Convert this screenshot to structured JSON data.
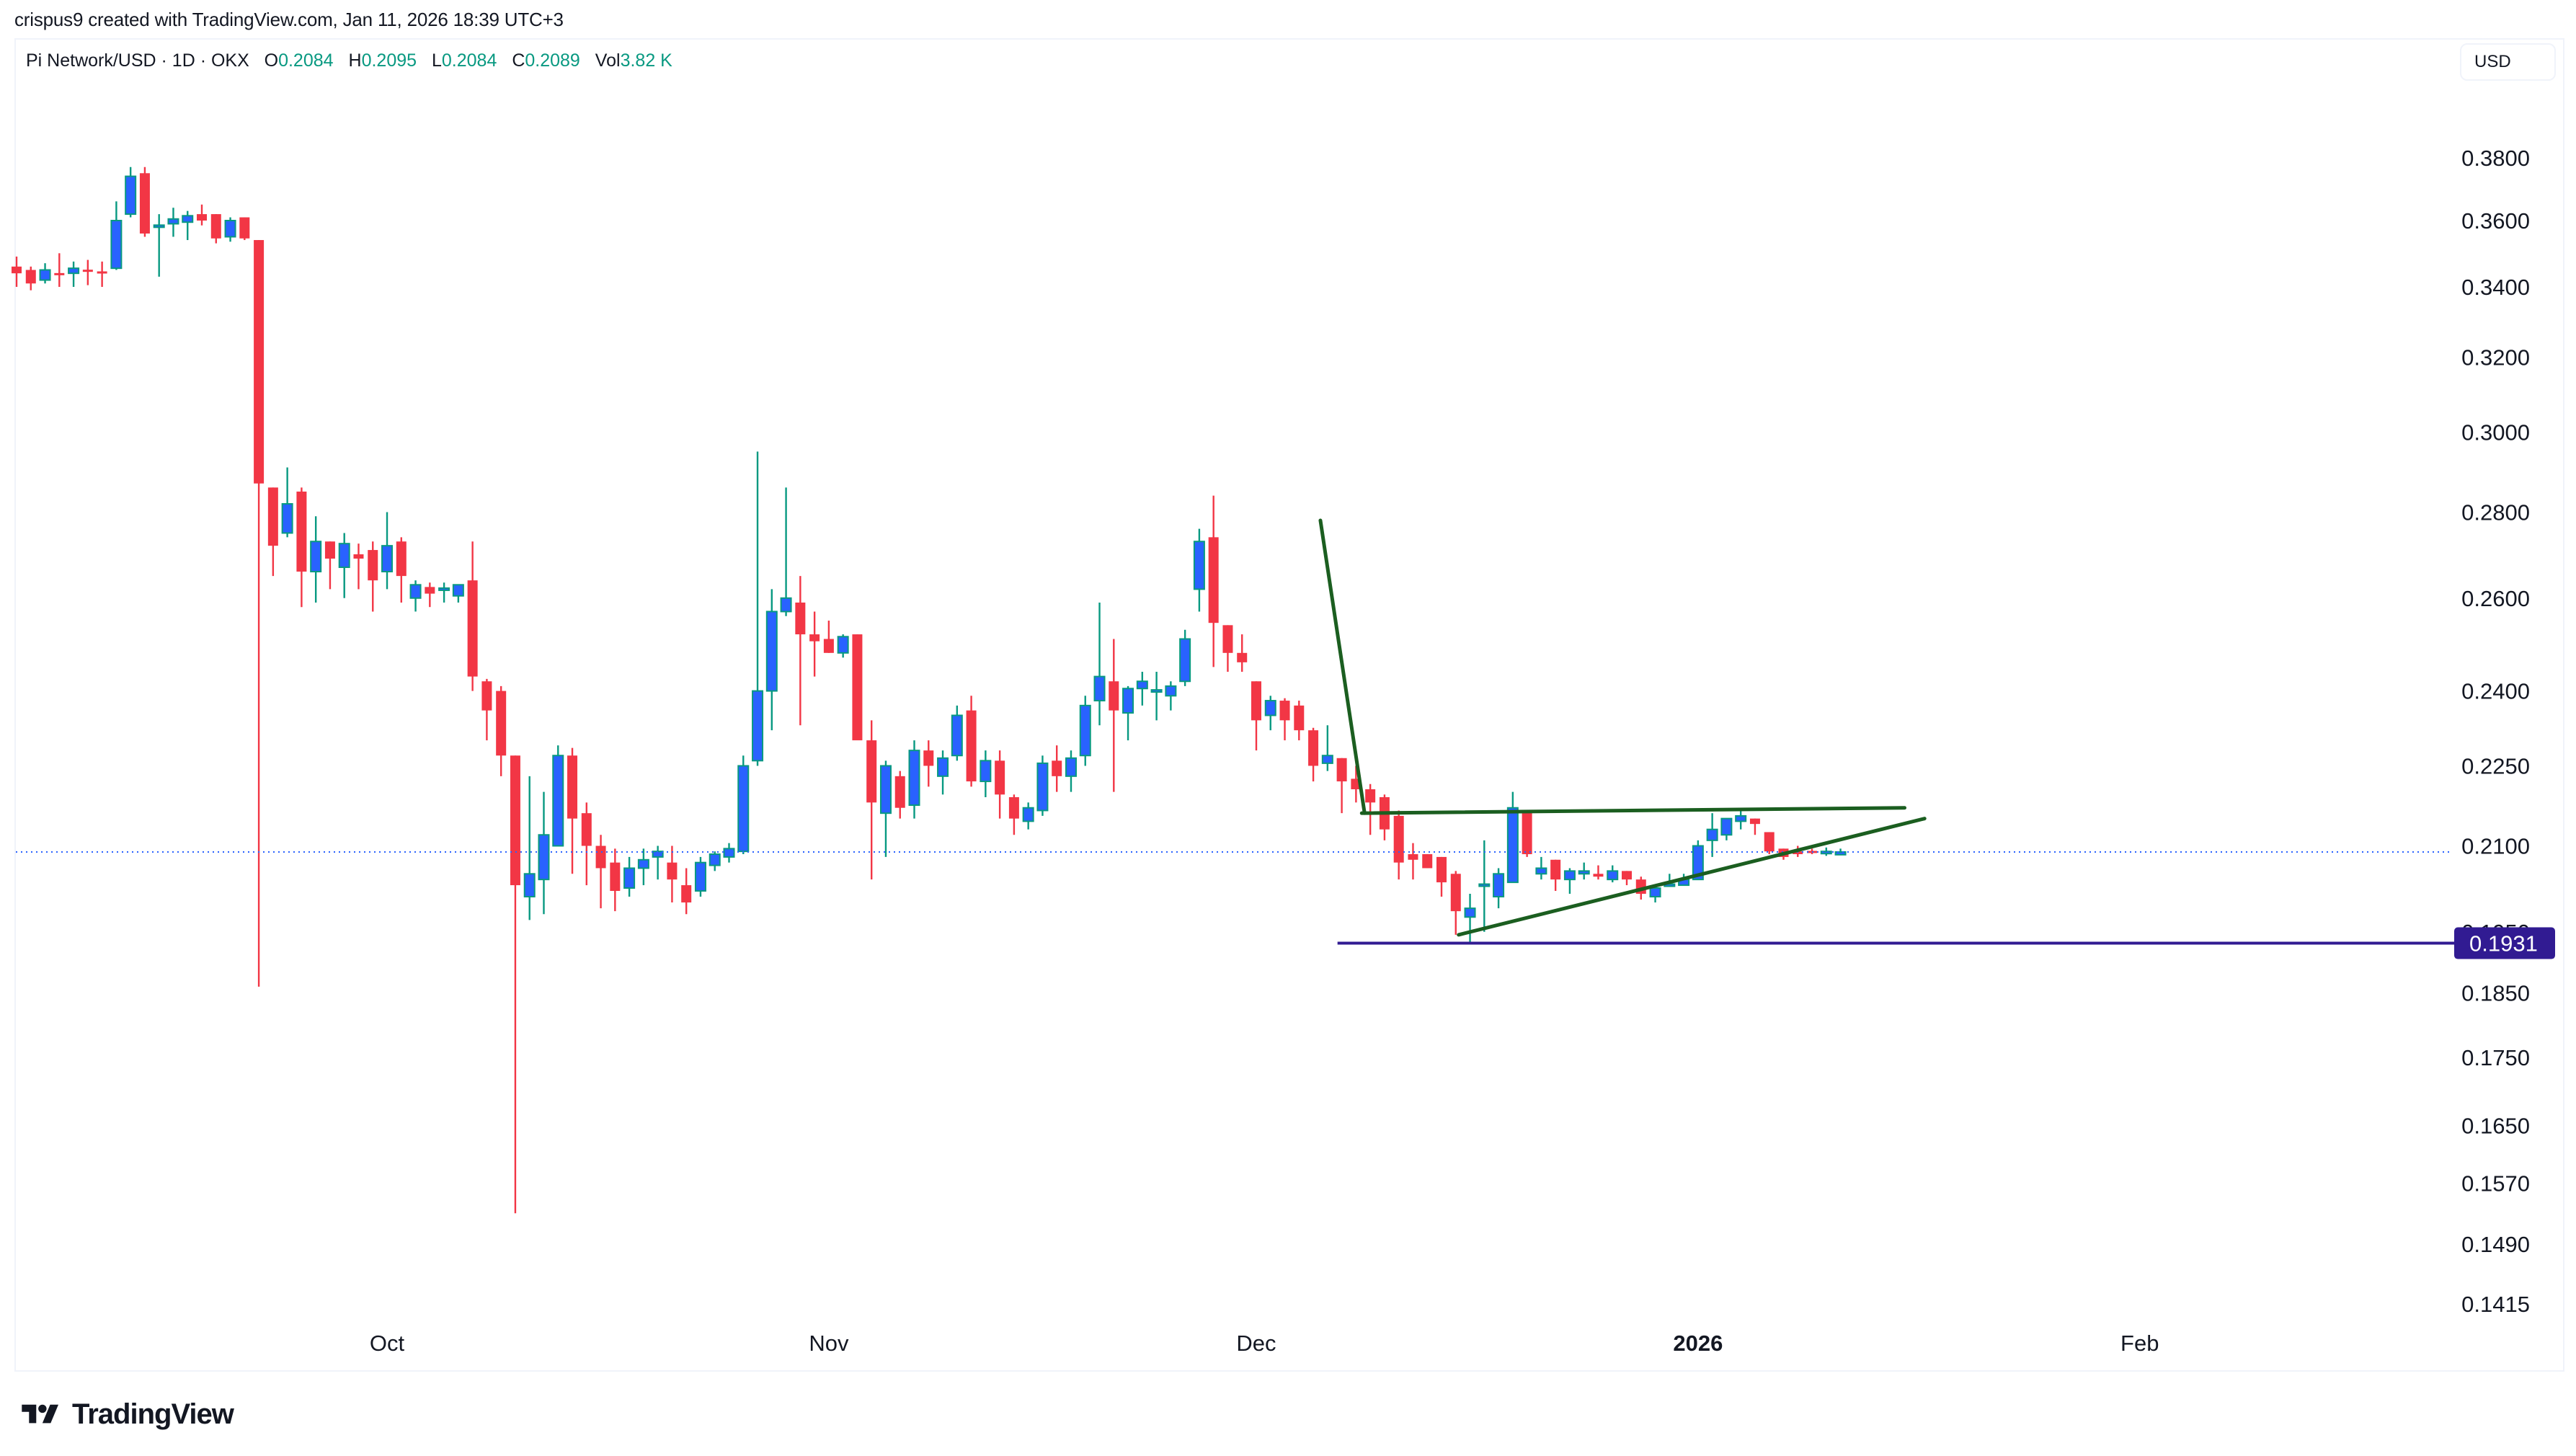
{
  "credit": "crispus9 created with TradingView.com, Jan 11, 2026 18:39 UTC+3",
  "legend": {
    "symbol": "Pi Network/USD · 1D · OKX",
    "open_label": "O",
    "open": "0.2084",
    "high_label": "H",
    "high": "0.2095",
    "low_label": "L",
    "low": "0.2084",
    "close_label": "C",
    "close": "0.2089",
    "vol_label": "Vol",
    "vol": "3.82 K"
  },
  "currency": "USD",
  "brand": "TradingView",
  "colors": {
    "up_body": "#2962ff",
    "up_border": "#089981",
    "down": "#f23645",
    "trendline": "#1b5e20",
    "support_line": "#311b92",
    "last_price_line": "#2962ff"
  },
  "chart_data": {
    "type": "candlestick",
    "title": "Pi Network/USD · 1D · OKX",
    "scale": "log",
    "xlabel": "",
    "ylabel": "USD",
    "ylim": [
      0.138,
      0.395
    ],
    "y_ticks": [
      "0.3800",
      "0.3600",
      "0.3400",
      "0.3200",
      "0.3000",
      "0.2800",
      "0.2600",
      "0.2400",
      "0.2250",
      "0.2100",
      "0.1950",
      "0.1850",
      "0.1750",
      "0.1650",
      "0.1570",
      "0.1490",
      "0.1415"
    ],
    "x_ticks": [
      {
        "label": "Oct",
        "bold": false,
        "day_index": 26
      },
      {
        "label": "Nov",
        "bold": false,
        "day_index": 57
      },
      {
        "label": "Dec",
        "bold": false,
        "day_index": 87
      },
      {
        "label": "2026",
        "bold": true,
        "day_index": 118
      },
      {
        "label": "Feb",
        "bold": false,
        "day_index": 149
      }
    ],
    "last_price": 0.2089,
    "horizontal_level": {
      "price": 0.1931,
      "label": "0.1931"
    },
    "annotations": [
      {
        "type": "trendline",
        "name": "flagpole",
        "from": {
          "day_index": 91.5,
          "price": 0.278
        },
        "to": {
          "day_index": 94.6,
          "price": 0.216
        }
      },
      {
        "type": "trendline",
        "name": "triangle-upper",
        "from": {
          "day_index": 94.4,
          "price": 0.216
        },
        "to": {
          "day_index": 132.5,
          "price": 0.217
        }
      },
      {
        "type": "trendline",
        "name": "triangle-lower",
        "from": {
          "day_index": 101.2,
          "price": 0.1945
        },
        "to": {
          "day_index": 133.9,
          "price": 0.215
        }
      },
      {
        "type": "hline",
        "name": "support",
        "from_day_index": 92.7,
        "price": 0.1931
      }
    ],
    "candles": [
      {
        "d": "Sep 5",
        "o": 0.346,
        "h": 0.349,
        "l": 0.34,
        "c": 0.344
      },
      {
        "d": "Sep 6",
        "o": 0.345,
        "h": 0.346,
        "l": 0.339,
        "c": 0.341
      },
      {
        "d": "Sep 7",
        "o": 0.342,
        "h": 0.347,
        "l": 0.341,
        "c": 0.345
      },
      {
        "d": "Sep 8",
        "o": 0.344,
        "h": 0.35,
        "l": 0.34,
        "c": 0.3435
      },
      {
        "d": "Sep 9",
        "o": 0.344,
        "h": 0.3475,
        "l": 0.34,
        "c": 0.3455
      },
      {
        "d": "Sep 10",
        "o": 0.345,
        "h": 0.348,
        "l": 0.3405,
        "c": 0.3445
      },
      {
        "d": "Sep 11",
        "o": 0.3445,
        "h": 0.3475,
        "l": 0.34,
        "c": 0.344
      },
      {
        "d": "Sep 12",
        "o": 0.3455,
        "h": 0.366,
        "l": 0.345,
        "c": 0.36
      },
      {
        "d": "Sep 13",
        "o": 0.362,
        "h": 0.377,
        "l": 0.361,
        "c": 0.374
      },
      {
        "d": "Sep 14",
        "o": 0.375,
        "h": 0.377,
        "l": 0.355,
        "c": 0.356
      },
      {
        "d": "Sep 15",
        "o": 0.358,
        "h": 0.362,
        "l": 0.343,
        "c": 0.3585
      },
      {
        "d": "Sep 16",
        "o": 0.359,
        "h": 0.364,
        "l": 0.355,
        "c": 0.3605
      },
      {
        "d": "Sep 17",
        "o": 0.3595,
        "h": 0.363,
        "l": 0.354,
        "c": 0.3615
      },
      {
        "d": "Sep 18",
        "o": 0.362,
        "h": 0.365,
        "l": 0.3585,
        "c": 0.36
      },
      {
        "d": "Sep 19",
        "o": 0.362,
        "h": 0.362,
        "l": 0.353,
        "c": 0.3545
      },
      {
        "d": "Sep 20",
        "o": 0.355,
        "h": 0.361,
        "l": 0.3535,
        "c": 0.36
      },
      {
        "d": "Sep 21",
        "o": 0.361,
        "h": 0.361,
        "l": 0.354,
        "c": 0.3545
      },
      {
        "d": "Sep 22",
        "o": 0.354,
        "h": 0.354,
        "l": 0.186,
        "c": 0.287
      },
      {
        "d": "Sep 23",
        "o": 0.286,
        "h": 0.286,
        "l": 0.265,
        "c": 0.272
      },
      {
        "d": "Sep 24",
        "o": 0.275,
        "h": 0.291,
        "l": 0.274,
        "c": 0.282
      },
      {
        "d": "Sep 25",
        "o": 0.285,
        "h": 0.286,
        "l": 0.258,
        "c": 0.266
      },
      {
        "d": "Sep 26",
        "o": 0.266,
        "h": 0.279,
        "l": 0.259,
        "c": 0.273
      },
      {
        "d": "Sep 27",
        "o": 0.273,
        "h": 0.273,
        "l": 0.262,
        "c": 0.269
      },
      {
        "d": "Sep 28",
        "o": 0.267,
        "h": 0.275,
        "l": 0.26,
        "c": 0.2725
      },
      {
        "d": "Sep 29",
        "o": 0.27,
        "h": 0.2725,
        "l": 0.262,
        "c": 0.269
      },
      {
        "d": "Sep 30",
        "o": 0.271,
        "h": 0.273,
        "l": 0.257,
        "c": 0.264
      },
      {
        "d": "Oct 1",
        "o": 0.266,
        "h": 0.28,
        "l": 0.262,
        "c": 0.272
      },
      {
        "d": "Oct 2",
        "o": 0.273,
        "h": 0.274,
        "l": 0.259,
        "c": 0.265
      },
      {
        "d": "Oct 3",
        "o": 0.26,
        "h": 0.264,
        "l": 0.257,
        "c": 0.263
      },
      {
        "d": "Oct 4",
        "o": 0.2625,
        "h": 0.2635,
        "l": 0.258,
        "c": 0.261
      },
      {
        "d": "Oct 5",
        "o": 0.262,
        "h": 0.2635,
        "l": 0.259,
        "c": 0.262
      },
      {
        "d": "Oct 6",
        "o": 0.2605,
        "h": 0.263,
        "l": 0.259,
        "c": 0.263
      },
      {
        "d": "Oct 7",
        "o": 0.264,
        "h": 0.273,
        "l": 0.24,
        "c": 0.243
      },
      {
        "d": "Oct 8",
        "o": 0.242,
        "h": 0.2425,
        "l": 0.23,
        "c": 0.236
      },
      {
        "d": "Oct 9",
        "o": 0.24,
        "h": 0.241,
        "l": 0.223,
        "c": 0.227
      },
      {
        "d": "Oct 10",
        "o": 0.227,
        "h": 0.227,
        "l": 0.153,
        "c": 0.203
      },
      {
        "d": "Oct 11",
        "o": 0.201,
        "h": 0.223,
        "l": 0.197,
        "c": 0.205
      },
      {
        "d": "Oct 12",
        "o": 0.204,
        "h": 0.22,
        "l": 0.198,
        "c": 0.212
      },
      {
        "d": "Oct 13",
        "o": 0.21,
        "h": 0.229,
        "l": 0.21,
        "c": 0.227
      },
      {
        "d": "Oct 14",
        "o": 0.227,
        "h": 0.2285,
        "l": 0.205,
        "c": 0.215
      },
      {
        "d": "Oct 15",
        "o": 0.216,
        "h": 0.218,
        "l": 0.203,
        "c": 0.21
      },
      {
        "d": "Oct 16",
        "o": 0.21,
        "h": 0.212,
        "l": 0.199,
        "c": 0.206
      },
      {
        "d": "Oct 17",
        "o": 0.207,
        "h": 0.2095,
        "l": 0.1985,
        "c": 0.202
      },
      {
        "d": "Oct 18",
        "o": 0.2025,
        "h": 0.208,
        "l": 0.201,
        "c": 0.206
      },
      {
        "d": "Oct 19",
        "o": 0.206,
        "h": 0.2095,
        "l": 0.203,
        "c": 0.2075
      },
      {
        "d": "Oct 20",
        "o": 0.208,
        "h": 0.21,
        "l": 0.204,
        "c": 0.209
      },
      {
        "d": "Oct 21",
        "o": 0.207,
        "h": 0.21,
        "l": 0.2,
        "c": 0.204
      },
      {
        "d": "Oct 22",
        "o": 0.203,
        "h": 0.206,
        "l": 0.198,
        "c": 0.2
      },
      {
        "d": "Oct 23",
        "o": 0.202,
        "h": 0.208,
        "l": 0.201,
        "c": 0.207
      },
      {
        "d": "Oct 24",
        "o": 0.2065,
        "h": 0.209,
        "l": 0.2055,
        "c": 0.2085
      },
      {
        "d": "Oct 25",
        "o": 0.208,
        "h": 0.2105,
        "l": 0.207,
        "c": 0.2095
      },
      {
        "d": "Oct 26",
        "o": 0.209,
        "h": 0.227,
        "l": 0.2085,
        "c": 0.225
      },
      {
        "d": "Oct 27",
        "o": 0.226,
        "h": 0.295,
        "l": 0.225,
        "c": 0.24
      },
      {
        "d": "Oct 28",
        "o": 0.24,
        "h": 0.262,
        "l": 0.232,
        "c": 0.257
      },
      {
        "d": "Oct 29",
        "o": 0.257,
        "h": 0.286,
        "l": 0.256,
        "c": 0.26
      },
      {
        "d": "Oct 30",
        "o": 0.259,
        "h": 0.265,
        "l": 0.233,
        "c": 0.252
      },
      {
        "d": "Oct 31",
        "o": 0.252,
        "h": 0.257,
        "l": 0.243,
        "c": 0.2505
      },
      {
        "d": "Nov 1",
        "o": 0.251,
        "h": 0.255,
        "l": 0.248,
        "c": 0.248
      },
      {
        "d": "Nov 2",
        "o": 0.248,
        "h": 0.252,
        "l": 0.247,
        "c": 0.2515
      },
      {
        "d": "Nov 3",
        "o": 0.252,
        "h": 0.252,
        "l": 0.235,
        "c": 0.23
      },
      {
        "d": "Nov 4",
        "o": 0.23,
        "h": 0.234,
        "l": 0.204,
        "c": 0.218
      },
      {
        "d": "Nov 5",
        "o": 0.216,
        "h": 0.226,
        "l": 0.208,
        "c": 0.225
      },
      {
        "d": "Nov 6",
        "o": 0.223,
        "h": 0.224,
        "l": 0.215,
        "c": 0.217
      },
      {
        "d": "Nov 7",
        "o": 0.2175,
        "h": 0.23,
        "l": 0.215,
        "c": 0.228
      },
      {
        "d": "Nov 8",
        "o": 0.228,
        "h": 0.23,
        "l": 0.221,
        "c": 0.225
      },
      {
        "d": "Nov 9",
        "o": 0.223,
        "h": 0.228,
        "l": 0.2195,
        "c": 0.2265
      },
      {
        "d": "Nov 10",
        "o": 0.227,
        "h": 0.237,
        "l": 0.226,
        "c": 0.235
      },
      {
        "d": "Nov 11",
        "o": 0.236,
        "h": 0.239,
        "l": 0.221,
        "c": 0.222
      },
      {
        "d": "Nov 12",
        "o": 0.222,
        "h": 0.228,
        "l": 0.219,
        "c": 0.226
      },
      {
        "d": "Nov 13",
        "o": 0.226,
        "h": 0.228,
        "l": 0.215,
        "c": 0.2195
      },
      {
        "d": "Nov 14",
        "o": 0.219,
        "h": 0.2195,
        "l": 0.212,
        "c": 0.215
      },
      {
        "d": "Nov 15",
        "o": 0.2145,
        "h": 0.218,
        "l": 0.213,
        "c": 0.217
      },
      {
        "d": "Nov 16",
        "o": 0.2165,
        "h": 0.227,
        "l": 0.2155,
        "c": 0.2255
      },
      {
        "d": "Nov 17",
        "o": 0.226,
        "h": 0.229,
        "l": 0.22,
        "c": 0.223
      },
      {
        "d": "Nov 18",
        "o": 0.223,
        "h": 0.228,
        "l": 0.22,
        "c": 0.2265
      },
      {
        "d": "Nov 19",
        "o": 0.227,
        "h": 0.239,
        "l": 0.225,
        "c": 0.237
      },
      {
        "d": "Nov 20",
        "o": 0.238,
        "h": 0.259,
        "l": 0.233,
        "c": 0.243
      },
      {
        "d": "Nov 21",
        "o": 0.242,
        "h": 0.251,
        "l": 0.22,
        "c": 0.236
      },
      {
        "d": "Nov 22",
        "o": 0.2355,
        "h": 0.241,
        "l": 0.23,
        "c": 0.2405
      },
      {
        "d": "Nov 23",
        "o": 0.2405,
        "h": 0.244,
        "l": 0.237,
        "c": 0.242
      },
      {
        "d": "Nov 24",
        "o": 0.24,
        "h": 0.244,
        "l": 0.234,
        "c": 0.24
      },
      {
        "d": "Nov 25",
        "o": 0.239,
        "h": 0.242,
        "l": 0.236,
        "c": 0.241
      },
      {
        "d": "Nov 26",
        "o": 0.242,
        "h": 0.253,
        "l": 0.241,
        "c": 0.251
      },
      {
        "d": "Nov 27",
        "o": 0.262,
        "h": 0.276,
        "l": 0.257,
        "c": 0.273
      },
      {
        "d": "Nov 28",
        "o": 0.274,
        "h": 0.284,
        "l": 0.245,
        "c": 0.2545
      },
      {
        "d": "Nov 29",
        "o": 0.254,
        "h": 0.254,
        "l": 0.244,
        "c": 0.248
      },
      {
        "d": "Nov 30",
        "o": 0.248,
        "h": 0.252,
        "l": 0.244,
        "c": 0.246
      },
      {
        "d": "Dec 1",
        "o": 0.242,
        "h": 0.242,
        "l": 0.228,
        "c": 0.234
      },
      {
        "d": "Dec 2",
        "o": 0.235,
        "h": 0.239,
        "l": 0.232,
        "c": 0.238
      },
      {
        "d": "Dec 3",
        "o": 0.238,
        "h": 0.2385,
        "l": 0.23,
        "c": 0.234
      },
      {
        "d": "Dec 4",
        "o": 0.237,
        "h": 0.238,
        "l": 0.23,
        "c": 0.232
      },
      {
        "d": "Dec 5",
        "o": 0.232,
        "h": 0.2325,
        "l": 0.222,
        "c": 0.225
      },
      {
        "d": "Dec 6",
        "o": 0.2255,
        "h": 0.233,
        "l": 0.224,
        "c": 0.227
      },
      {
        "d": "Dec 7",
        "o": 0.2265,
        "h": 0.2265,
        "l": 0.216,
        "c": 0.222
      },
      {
        "d": "Dec 8",
        "o": 0.2225,
        "h": 0.225,
        "l": 0.218,
        "c": 0.2205
      },
      {
        "d": "Dec 9",
        "o": 0.2205,
        "h": 0.2215,
        "l": 0.212,
        "c": 0.218
      },
      {
        "d": "Dec 10",
        "o": 0.219,
        "h": 0.2195,
        "l": 0.211,
        "c": 0.213
      },
      {
        "d": "Dec 11",
        "o": 0.2155,
        "h": 0.2165,
        "l": 0.204,
        "c": 0.207
      },
      {
        "d": "Dec 12",
        "o": 0.2085,
        "h": 0.2105,
        "l": 0.204,
        "c": 0.2075
      },
      {
        "d": "Dec 13",
        "o": 0.2085,
        "h": 0.2085,
        "l": 0.206,
        "c": 0.206
      },
      {
        "d": "Dec 14",
        "o": 0.208,
        "h": 0.208,
        "l": 0.201,
        "c": 0.2035
      },
      {
        "d": "Dec 15",
        "o": 0.205,
        "h": 0.2055,
        "l": 0.1945,
        "c": 0.1985
      },
      {
        "d": "Dec 16",
        "o": 0.1975,
        "h": 0.2015,
        "l": 0.193,
        "c": 0.199
      },
      {
        "d": "Dec 17",
        "o": 0.203,
        "h": 0.211,
        "l": 0.195,
        "c": 0.203
      },
      {
        "d": "Dec 18",
        "o": 0.201,
        "h": 0.206,
        "l": 0.199,
        "c": 0.205
      },
      {
        "d": "Dec 19",
        "o": 0.2035,
        "h": 0.22,
        "l": 0.2035,
        "c": 0.217
      },
      {
        "d": "Dec 20",
        "o": 0.2165,
        "h": 0.2165,
        "l": 0.208,
        "c": 0.2085
      },
      {
        "d": "Dec 21",
        "o": 0.205,
        "h": 0.208,
        "l": 0.204,
        "c": 0.206
      },
      {
        "d": "Dec 22",
        "o": 0.2075,
        "h": 0.2075,
        "l": 0.202,
        "c": 0.204
      },
      {
        "d": "Dec 23",
        "o": 0.204,
        "h": 0.206,
        "l": 0.2015,
        "c": 0.2055
      },
      {
        "d": "Dec 24",
        "o": 0.205,
        "h": 0.207,
        "l": 0.204,
        "c": 0.2055
      },
      {
        "d": "Dec 25",
        "o": 0.205,
        "h": 0.2065,
        "l": 0.204,
        "c": 0.2045
      },
      {
        "d": "Dec 26",
        "o": 0.204,
        "h": 0.2065,
        "l": 0.2035,
        "c": 0.2055
      },
      {
        "d": "Dec 27",
        "o": 0.2055,
        "h": 0.2055,
        "l": 0.203,
        "c": 0.204
      },
      {
        "d": "Dec 28",
        "o": 0.204,
        "h": 0.2045,
        "l": 0.2005,
        "c": 0.2015
      },
      {
        "d": "Dec 29",
        "o": 0.201,
        "h": 0.203,
        "l": 0.2,
        "c": 0.2025
      },
      {
        "d": "Dec 30",
        "o": 0.203,
        "h": 0.205,
        "l": 0.203,
        "c": 0.203
      },
      {
        "d": "Dec 31",
        "o": 0.203,
        "h": 0.205,
        "l": 0.203,
        "c": 0.204
      },
      {
        "d": "Jan 1",
        "o": 0.204,
        "h": 0.211,
        "l": 0.204,
        "c": 0.21
      },
      {
        "d": "Jan 2",
        "o": 0.211,
        "h": 0.216,
        "l": 0.208,
        "c": 0.213
      },
      {
        "d": "Jan 3",
        "o": 0.212,
        "h": 0.215,
        "l": 0.211,
        "c": 0.215
      },
      {
        "d": "Jan 4",
        "o": 0.2145,
        "h": 0.2165,
        "l": 0.213,
        "c": 0.2155
      },
      {
        "d": "Jan 5",
        "o": 0.215,
        "h": 0.215,
        "l": 0.212,
        "c": 0.214
      },
      {
        "d": "Jan 6",
        "o": 0.2125,
        "h": 0.2125,
        "l": 0.2085,
        "c": 0.209
      },
      {
        "d": "Jan 7",
        "o": 0.2095,
        "h": 0.2095,
        "l": 0.2075,
        "c": 0.208
      },
      {
        "d": "Jan 8",
        "o": 0.209,
        "h": 0.21,
        "l": 0.208,
        "c": 0.2085
      },
      {
        "d": "Jan 9",
        "o": 0.209,
        "h": 0.2095,
        "l": 0.2085,
        "c": 0.2088
      },
      {
        "d": "Jan 10",
        "o": 0.2086,
        "h": 0.2097,
        "l": 0.2082,
        "c": 0.209
      },
      {
        "d": "Jan 11",
        "o": 0.2084,
        "h": 0.2095,
        "l": 0.2084,
        "c": 0.2089
      }
    ]
  }
}
